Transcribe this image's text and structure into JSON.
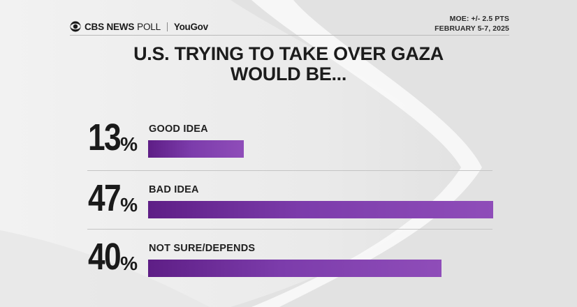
{
  "header": {
    "brand_cbs": "CBS NEWS",
    "brand_poll": "POLL",
    "brand_partner": "YouGov",
    "moe": "MOE: +/- 2.5 PTS",
    "dates": "FEBRUARY 5-7, 2025"
  },
  "colors": {
    "bar": "#7c3cab",
    "bar_dark": "#5e1e86",
    "text": "#1a1a1a"
  },
  "chart_data": {
    "type": "bar",
    "orientation": "horizontal",
    "title": "U.S. TRYING TO TAKE OVER GAZA WOULD BE...",
    "categories": [
      "GOOD IDEA",
      "BAD IDEA",
      "NOT SURE/DEPENDS"
    ],
    "values": [
      13,
      47,
      40
    ],
    "value_suffix": "%",
    "xlim": [
      0,
      47
    ]
  }
}
